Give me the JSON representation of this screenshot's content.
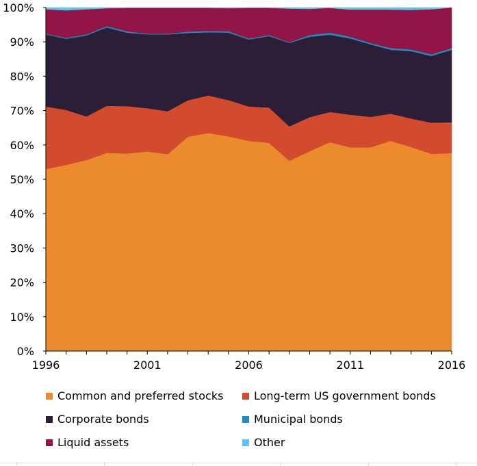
{
  "chart_data": {
    "type": "area",
    "stacked": true,
    "normalized": true,
    "x": [
      1996,
      1997,
      1998,
      1999,
      2000,
      2001,
      2002,
      2003,
      2004,
      2005,
      2006,
      2007,
      2008,
      2009,
      2010,
      2011,
      2012,
      2013,
      2014,
      2015,
      2016
    ],
    "x_tick_labels": [
      "1996",
      "2001",
      "2006",
      "2011",
      "2016"
    ],
    "x_ticks": [
      1996,
      2001,
      2006,
      2011,
      2016
    ],
    "y_tick_labels": [
      "0%",
      "10%",
      "20%",
      "30%",
      "40%",
      "50%",
      "60%",
      "70%",
      "80%",
      "90%",
      "100%"
    ],
    "ylim": [
      0,
      100
    ],
    "grid": false,
    "legend_position": "bottom",
    "series": [
      {
        "name": "Common and preferred stocks",
        "color": "#EC8B2D",
        "values": [
          53.0,
          54.2,
          55.6,
          57.7,
          57.5,
          58.1,
          57.3,
          62.4,
          63.5,
          62.6,
          61.2,
          60.6,
          55.4,
          58.2,
          60.8,
          59.3,
          59.3,
          61.2,
          59.4,
          57.4,
          57.6
        ]
      },
      {
        "name": "Long-term US government bonds",
        "color": "#D24B2E",
        "values": [
          18.2,
          16.0,
          12.7,
          13.7,
          13.8,
          12.6,
          12.5,
          10.6,
          10.9,
          10.6,
          10.0,
          10.3,
          10.0,
          9.9,
          8.8,
          9.5,
          8.9,
          7.9,
          8.3,
          9.1,
          9.0
        ]
      },
      {
        "name": "Corporate bonds",
        "color": "#2D1E38",
        "values": [
          21.0,
          20.7,
          23.6,
          22.8,
          21.4,
          21.5,
          22.4,
          19.6,
          18.4,
          19.7,
          19.5,
          20.8,
          24.3,
          23.4,
          22.5,
          22.2,
          21.1,
          18.6,
          19.6,
          19.4,
          21.1
        ]
      },
      {
        "name": "Municipal bonds",
        "color": "#1F8BBF",
        "values": [
          0.2,
          0.3,
          0.3,
          0.4,
          0.4,
          0.2,
          0.2,
          0.4,
          0.4,
          0.4,
          0.3,
          0.3,
          0.2,
          0.5,
          0.6,
          0.5,
          0.4,
          0.5,
          0.5,
          0.5,
          0.5
        ]
      },
      {
        "name": "Liquid assets",
        "color": "#931446",
        "values": [
          7.1,
          8.0,
          7.3,
          5.2,
          6.8,
          7.5,
          7.5,
          6.9,
          6.7,
          6.7,
          8.9,
          7.9,
          9.8,
          7.6,
          7.2,
          7.9,
          9.7,
          11.2,
          11.5,
          13.1,
          11.8
        ]
      },
      {
        "name": "Other",
        "color": "#5BC6EE",
        "values": [
          0.5,
          0.8,
          0.5,
          0.2,
          0.1,
          0.1,
          0.1,
          0.1,
          0.1,
          0.2,
          0.1,
          0.1,
          0.3,
          0.4,
          0.1,
          0.6,
          0.6,
          0.6,
          0.7,
          0.5,
          0.0
        ]
      }
    ]
  },
  "legend": [
    {
      "label": "Common and preferred stocks",
      "color": "#EC8B2D"
    },
    {
      "label": "Long-term US government bonds",
      "color": "#D24B2E"
    },
    {
      "label": "Corporate bonds",
      "color": "#2D1E38"
    },
    {
      "label": "Municipal bonds",
      "color": "#1F8BBF"
    },
    {
      "label": "Liquid assets",
      "color": "#931446"
    },
    {
      "label": "Other",
      "color": "#5BC6EE"
    }
  ],
  "axis_color": "#000000"
}
